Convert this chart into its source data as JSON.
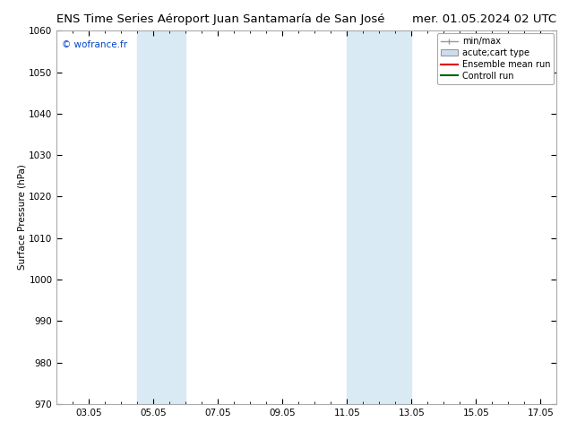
{
  "title_left": "ENS Time Series Aéroport Juan Santamaría de San José",
  "title_right": "mer. 01.05.2024 02 UTC",
  "ylabel": "Surface Pressure (hPa)",
  "ylim": [
    970,
    1060
  ],
  "yticks": [
    970,
    980,
    990,
    1000,
    1010,
    1020,
    1030,
    1040,
    1050,
    1060
  ],
  "xtick_labels": [
    "03.05",
    "05.05",
    "07.05",
    "09.05",
    "11.05",
    "13.05",
    "15.05",
    "17.05"
  ],
  "xtick_positions": [
    3,
    5,
    7,
    9,
    11,
    13,
    15,
    17
  ],
  "xlim": [
    2.0,
    17.5
  ],
  "shade_bands": [
    {
      "x_start": 4.5,
      "x_end": 6.0
    },
    {
      "x_start": 11.0,
      "x_end": 13.0
    }
  ],
  "shade_color": "#daeaf5",
  "background_color": "#ffffff",
  "copyright_text": "© wofrance.fr",
  "copyright_color": "#0044cc",
  "legend_items": [
    {
      "label": "min/max",
      "color": "#aaaaaa",
      "style": "minmax"
    },
    {
      "label": "acute;cart type",
      "color": "#ccddee",
      "style": "box"
    },
    {
      "label": "Ensemble mean run",
      "color": "#dd0000",
      "style": "line"
    },
    {
      "label": "Controll run",
      "color": "#006600",
      "style": "line"
    }
  ],
  "spine_color": "#aaaaaa",
  "tick_label_fontsize": 7.5,
  "title_fontsize": 9.5,
  "ylabel_fontsize": 7.5,
  "legend_fontsize": 7.0
}
